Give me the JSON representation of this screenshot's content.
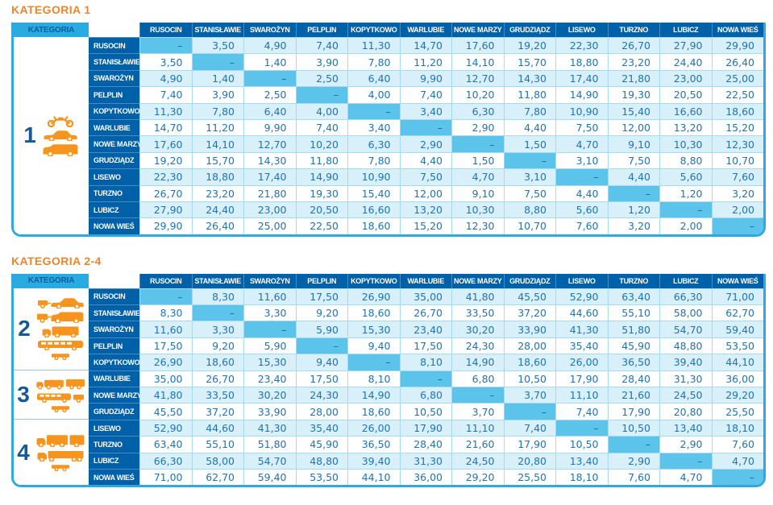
{
  "colors": {
    "title_orange": "#E8872B",
    "icon_orange": "#F7941E",
    "header_blue": "#0060A8",
    "corner_cyan": "#29ABE2",
    "row_stripe": "#D7F0FA",
    "diagonal_blue": "#5CC4EA",
    "outer_border": "#2FA8E0",
    "price_text": "#2173B4"
  },
  "stations": [
    "RUSOCIN",
    "STANISŁAWIE",
    "SWAROŻYN",
    "PELPLIN",
    "KOPYTKOWO",
    "WARLUBIE",
    "NOWE MARZY",
    "GRUDZIĄDZ",
    "LISEWO",
    "TURZNO",
    "LUBICZ",
    "NOWA WIEŚ"
  ],
  "tables": [
    {
      "title": "KATEGORIA 1",
      "corner_label": "KATEGORIA",
      "categories": [
        {
          "number": "1",
          "rows": 12,
          "icons": [
            "motorcycle-icon",
            "car-icon",
            "van-icon"
          ]
        }
      ],
      "rows": [
        [
          "–",
          "3,50",
          "4,90",
          "7,40",
          "11,30",
          "14,70",
          "17,60",
          "19,20",
          "22,30",
          "26,70",
          "27,90",
          "29,90"
        ],
        [
          "3,50",
          "–",
          "1,40",
          "3,90",
          "7,80",
          "11,20",
          "14,10",
          "15,70",
          "18,80",
          "23,20",
          "24,40",
          "26,40"
        ],
        [
          "4,90",
          "1,40",
          "–",
          "2,50",
          "6,40",
          "9,90",
          "12,70",
          "14,30",
          "17,40",
          "21,80",
          "23,00",
          "25,00"
        ],
        [
          "7,40",
          "3,90",
          "2,50",
          "–",
          "4,00",
          "7,40",
          "10,20",
          "11,80",
          "14,90",
          "19,30",
          "20,50",
          "22,50"
        ],
        [
          "11,30",
          "7,80",
          "6,40",
          "4,00",
          "–",
          "3,40",
          "6,30",
          "7,80",
          "10,90",
          "15,40",
          "16,60",
          "18,60"
        ],
        [
          "14,70",
          "11,20",
          "9,90",
          "7,40",
          "3,40",
          "–",
          "2,90",
          "4,40",
          "7,50",
          "12,00",
          "13,20",
          "15,20"
        ],
        [
          "17,60",
          "14,10",
          "12,70",
          "10,20",
          "6,30",
          "2,90",
          "–",
          "1,50",
          "4,70",
          "9,10",
          "10,30",
          "12,30"
        ],
        [
          "19,20",
          "15,70",
          "14,30",
          "11,80",
          "7,80",
          "4,40",
          "1,50",
          "–",
          "3,10",
          "7,50",
          "8,80",
          "10,70"
        ],
        [
          "22,30",
          "18,80",
          "17,40",
          "14,90",
          "10,90",
          "7,50",
          "4,70",
          "3,10",
          "–",
          "4,40",
          "5,60",
          "7,60"
        ],
        [
          "26,70",
          "23,20",
          "21,80",
          "19,30",
          "15,40",
          "12,00",
          "9,10",
          "7,50",
          "4,40",
          "–",
          "1,20",
          "3,20"
        ],
        [
          "27,90",
          "24,40",
          "23,00",
          "20,50",
          "16,60",
          "13,20",
          "10,30",
          "8,80",
          "5,60",
          "1,20",
          "–",
          "2,00"
        ],
        [
          "29,90",
          "26,40",
          "25,00",
          "22,50",
          "18,60",
          "15,20",
          "12,30",
          "10,70",
          "7,60",
          "3,20",
          "2,00",
          "–"
        ]
      ]
    },
    {
      "title": "KATEGORIA 2-4",
      "corner_label": "KATEGORIA",
      "categories": [
        {
          "number": "2",
          "rows": 5,
          "icons": [
            "car-trailer-icon",
            "van-trailer-icon",
            "truck-icon",
            "bus-icon",
            "trailer-icon"
          ]
        },
        {
          "number": "3",
          "rows": 3,
          "icons": [
            "truck-trailer-icon",
            "bus-trailer-icon",
            "trailer-icon"
          ]
        },
        {
          "number": "4",
          "rows": 4,
          "icons": [
            "truck-trailer-large-icon",
            "semi-truck-icon",
            "trailer-icon"
          ]
        }
      ],
      "rows": [
        [
          "–",
          "8,30",
          "11,60",
          "17,50",
          "26,90",
          "35,00",
          "41,80",
          "45,50",
          "52,90",
          "63,40",
          "66,30",
          "71,00"
        ],
        [
          "8,30",
          "–",
          "3,30",
          "9,20",
          "18,60",
          "26,70",
          "33,50",
          "37,20",
          "44,60",
          "55,10",
          "58,00",
          "62,70"
        ],
        [
          "11,60",
          "3,30",
          "–",
          "5,90",
          "15,30",
          "23,40",
          "30,20",
          "33,90",
          "41,30",
          "51,80",
          "54,70",
          "59,40"
        ],
        [
          "17,50",
          "9,20",
          "5,90",
          "–",
          "9,40",
          "17,50",
          "24,30",
          "28,00",
          "35,40",
          "45,90",
          "48,80",
          "53,50"
        ],
        [
          "26,90",
          "18,60",
          "15,30",
          "9,40",
          "–",
          "8,10",
          "14,90",
          "18,60",
          "26,00",
          "36,50",
          "39,40",
          "44,10"
        ],
        [
          "35,00",
          "26,70",
          "23,40",
          "17,50",
          "8,10",
          "–",
          "6,80",
          "10,50",
          "17,90",
          "28,40",
          "31,30",
          "36,00"
        ],
        [
          "41,80",
          "33,50",
          "30,20",
          "24,30",
          "14,90",
          "6,80",
          "–",
          "3,70",
          "11,10",
          "21,60",
          "24,50",
          "29,20"
        ],
        [
          "45,50",
          "37,20",
          "33,90",
          "28,00",
          "18,60",
          "10,50",
          "3,70",
          "–",
          "7,40",
          "17,90",
          "20,80",
          "25,50"
        ],
        [
          "52,90",
          "44,60",
          "41,30",
          "35,40",
          "26,00",
          "17,90",
          "11,10",
          "7,40",
          "–",
          "10,50",
          "13,40",
          "18,10"
        ],
        [
          "63,40",
          "55,10",
          "51,80",
          "45,90",
          "36,50",
          "28,40",
          "21,60",
          "17,90",
          "10,50",
          "–",
          "2,90",
          "7,60"
        ],
        [
          "66,30",
          "58,00",
          "54,70",
          "48,80",
          "39,40",
          "31,30",
          "24,50",
          "20,80",
          "13,40",
          "2,90",
          "–",
          "4,70"
        ],
        [
          "71,00",
          "62,70",
          "59,40",
          "53,50",
          "44,10",
          "36,00",
          "29,20",
          "25,50",
          "18,10",
          "7,60",
          "4,70",
          "–"
        ]
      ]
    }
  ]
}
